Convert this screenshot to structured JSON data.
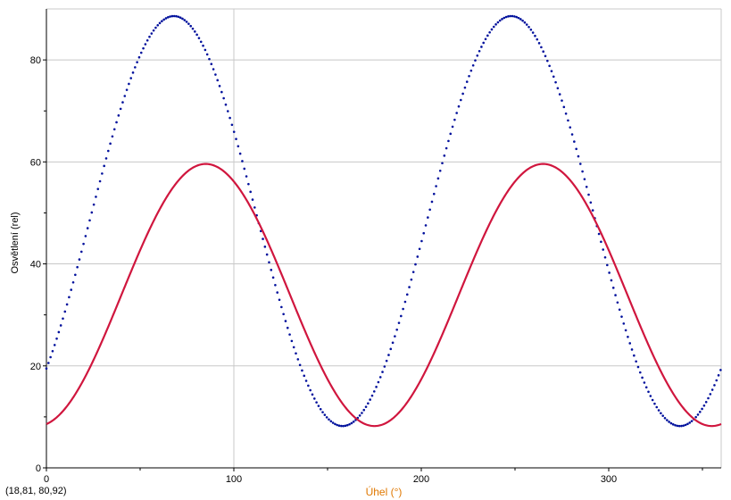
{
  "chart_data": {
    "type": "scatter",
    "xlabel": "Úhel (°)",
    "ylabel": "Osvětlení (rel)",
    "xlim": [
      0,
      360
    ],
    "ylim": [
      0,
      90
    ],
    "x_ticks": [
      0,
      100,
      200,
      300
    ],
    "y_ticks": [
      0,
      20,
      40,
      60,
      80
    ],
    "grid": true,
    "cursor_readout": "(18,81, 80,92)",
    "cursor": {
      "x": 100,
      "y": 40
    },
    "series": [
      {
        "color": "#00109c",
        "style": "dotted",
        "min": 8.2,
        "max": 88.6,
        "period": 180,
        "peak_x": 68,
        "phase_shift": 0
      },
      {
        "color": "#d0163e",
        "style": "solid",
        "min": 8.2,
        "max": 59.6,
        "period": 180,
        "peak_x": 85,
        "phase_shift": 0
      }
    ]
  }
}
